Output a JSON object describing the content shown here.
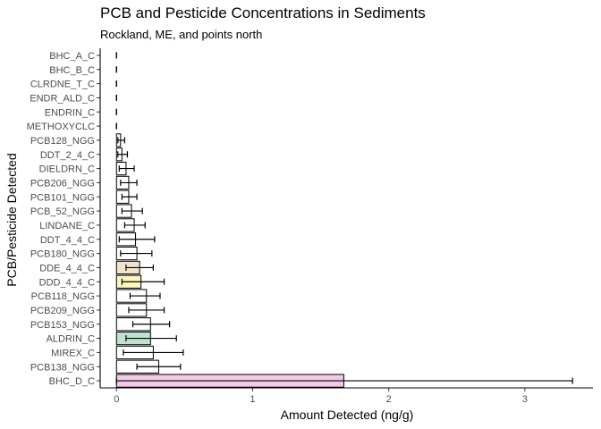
{
  "chart_data": {
    "type": "bar",
    "orientation": "horizontal",
    "title": "PCB and Pesticide Concentrations in Sediments",
    "subtitle": "Rockland, ME, and points north",
    "xlabel": "Amount Detected (ng/g)",
    "ylabel": "PCB/Pesticide Detected",
    "xlim": [
      -0.12,
      3.5
    ],
    "xticks": [
      0,
      1,
      2,
      3
    ],
    "grid": false,
    "legend": "none",
    "categories": [
      "BHC_A_C",
      "BHC_B_C",
      "CLRDNE_T_C",
      "ENDR_ALD_C",
      "ENDRIN_C",
      "METHOXYCLC",
      "PCB128_NGG",
      "DDT_2_4_C",
      "DIELDRN_C",
      "PCB206_NGG",
      "PCB101_NGG",
      "PCB_52_NGG",
      "LINDANE_C",
      "DDT_4_4_C",
      "PCB180_NGG",
      "DDE_4_4_C",
      "DDD_4_4_C",
      "PCB118_NGG",
      "PCB209_NGG",
      "PCB153_NGG",
      "ALDRIN_C",
      "MIREX_C",
      "PCB138_NGG",
      "BHC_D_C"
    ],
    "values": [
      0,
      0,
      0,
      0,
      0,
      0,
      0.03,
      0.04,
      0.07,
      0.09,
      0.09,
      0.11,
      0.13,
      0.14,
      0.15,
      0.17,
      0.18,
      0.22,
      0.22,
      0.25,
      0.25,
      0.27,
      0.31,
      1.67
    ],
    "error_low": [
      0,
      0,
      0,
      0,
      0,
      0,
      0.01,
      0.01,
      0.02,
      0.03,
      0.04,
      0.04,
      0.06,
      0.02,
      0.03,
      0.07,
      0.04,
      0.1,
      0.09,
      0.12,
      0.07,
      0.05,
      0.15,
      0
    ],
    "error_high": [
      0,
      0,
      0,
      0,
      0,
      0,
      0.06,
      0.08,
      0.13,
      0.15,
      0.15,
      0.19,
      0.21,
      0.28,
      0.26,
      0.27,
      0.35,
      0.32,
      0.35,
      0.39,
      0.44,
      0.49,
      0.47,
      3.35
    ],
    "colors": [
      "#ffffff",
      "#ffffff",
      "#ffffff",
      "#ffffff",
      "#ffffff",
      "#ffffff",
      "#ffffff",
      "#ffffff",
      "#ffffff",
      "#ffffff",
      "#ffffff",
      "#ffffff",
      "#ffffff",
      "#ffffff",
      "#ffffff",
      "#f0e4cf",
      "#fff6be",
      "#ffffff",
      "#ffffff",
      "#ffffff",
      "#c1e2cf",
      "#ffffff",
      "#ffffff",
      "#f3c9e6"
    ]
  }
}
